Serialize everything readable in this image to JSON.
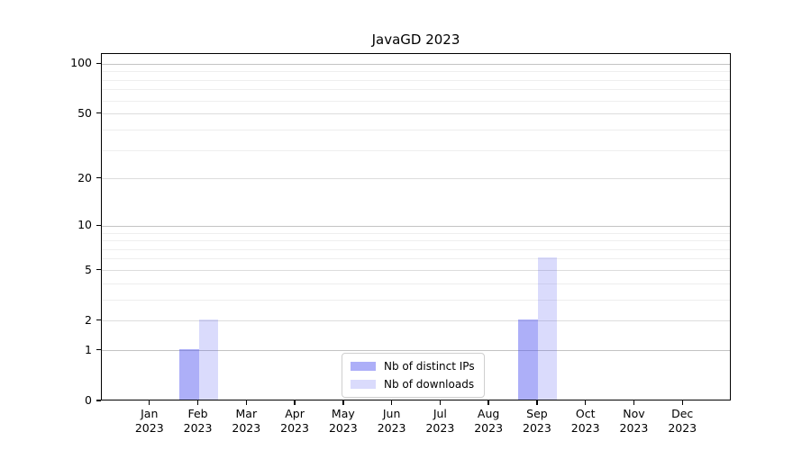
{
  "window": {
    "background": "#ffffff"
  },
  "chart_data": {
    "type": "bar",
    "title": "JavaGD 2023",
    "categories": [
      "Jan 2023",
      "Feb 2023",
      "Mar 2023",
      "Apr 2023",
      "May 2023",
      "Jun 2023",
      "Jul 2023",
      "Aug 2023",
      "Sep 2023",
      "Oct 2023",
      "Nov 2023",
      "Dec 2023"
    ],
    "series": [
      {
        "name": "Nb of distinct IPs",
        "color": "#acaff8",
        "base_color": "#5055f0",
        "alpha": 0.47,
        "values": [
          0,
          1,
          0,
          0,
          0,
          0,
          0,
          0,
          2,
          0,
          0,
          0
        ]
      },
      {
        "name": "Nb of downloads",
        "color": "#dadbfc",
        "base_color": "#5055f0",
        "alpha": 0.21,
        "values": [
          0,
          2,
          0,
          0,
          0,
          0,
          0,
          0,
          6,
          0,
          0,
          0
        ]
      }
    ],
    "xlabel": "",
    "ylabel": "",
    "yscale": "log1p",
    "ylim": [
      0,
      115
    ],
    "yticks": [
      0,
      1,
      2,
      5,
      10,
      20,
      50,
      100
    ],
    "gridlines": {
      "major": [
        1,
        10,
        100
      ],
      "mid": [
        2,
        5,
        20,
        50
      ],
      "minor": [
        3,
        4,
        6,
        7,
        8,
        9,
        30,
        40,
        60,
        70,
        80,
        90
      ],
      "major_color": "#c3c3c3",
      "mid_color": "#dddddd",
      "minor_color": "#eeeeee"
    },
    "legend_position": "inside-lower-center",
    "axis_color": "#000000",
    "grid_on": true
  }
}
